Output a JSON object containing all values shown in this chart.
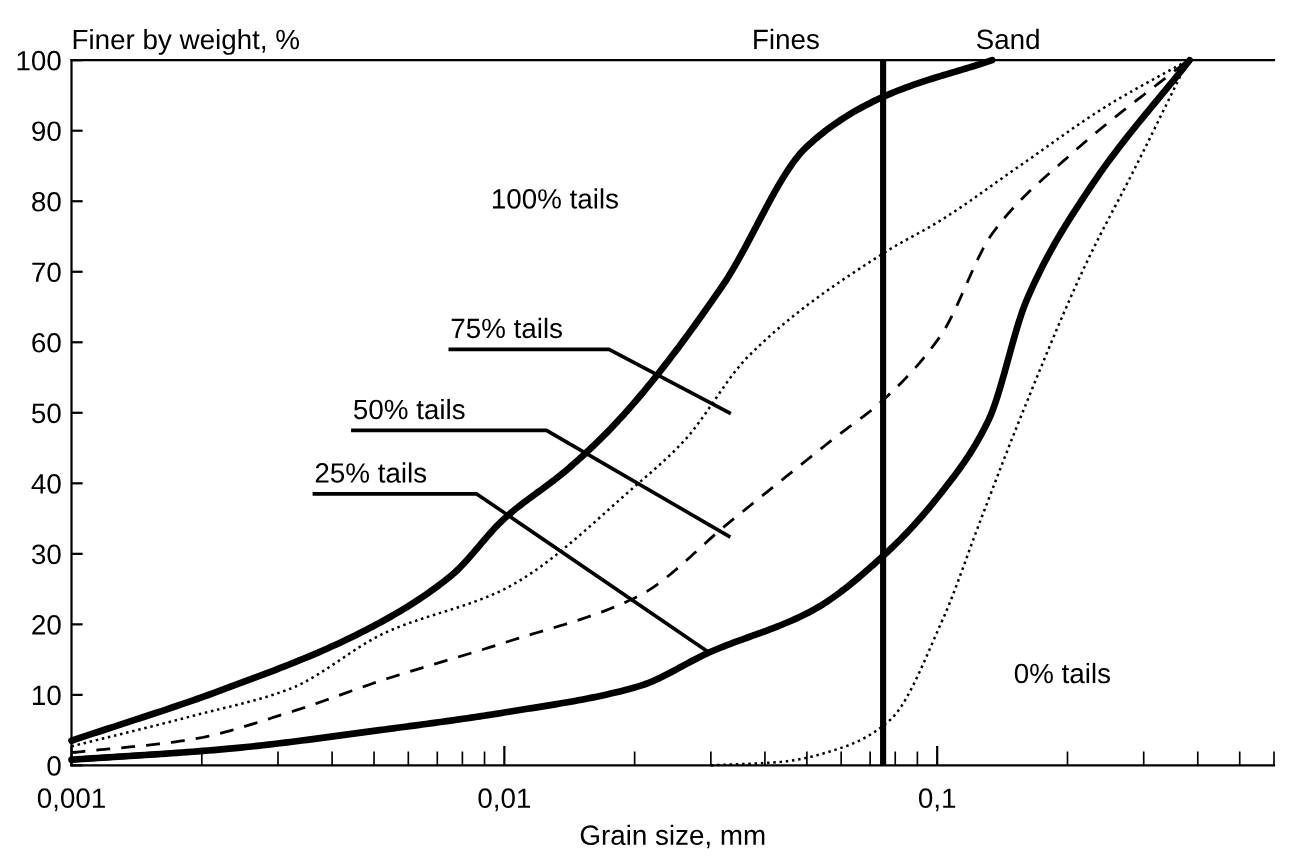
{
  "chart_data": {
    "type": "line",
    "xlabel": "Grain size, mm",
    "ylabel": "Finer by weight, %",
    "log": "x",
    "xlim": [
      0.001,
      0.6
    ],
    "xticks": [
      {
        "value": 0.001,
        "label": "0,001"
      },
      {
        "value": 0.01,
        "label": "0,01"
      },
      {
        "value": 0.1,
        "label": "0,1"
      }
    ],
    "ylim": [
      0,
      100
    ],
    "yticks": [
      0,
      10,
      20,
      30,
      40,
      50,
      60,
      70,
      80,
      90,
      100
    ],
    "grid": false,
    "marker": "none",
    "ref_lines": [
      {
        "axis": "x",
        "value": 0.075,
        "color": "#000000",
        "line_style": "solid"
      }
    ],
    "annotations": [
      "Fines",
      "Sand",
      "100% tails",
      "75% tails",
      {
        "text": "50% tails",
        "x": 0.033,
        "y": 32.5
      },
      {
        "text": "25% tails",
        "x": 0.0297,
        "y": 16
      },
      "0% tails"
    ],
    "series": [
      {
        "color": "#000000",
        "line_style": "solid",
        "x": [
          0.001,
          0.00225,
          0.00465,
          0.0075,
          0.01,
          0.014,
          0.0184,
          0.0319,
          0.0499,
          0.075,
          0.134
        ],
        "values": [
          3.5,
          10.8,
          18.8,
          26.8,
          35,
          42,
          49,
          68,
          87.7,
          94.8,
          100
        ]
      },
      {
        "color": "#000000",
        "line_style": "dotted",
        "x": [
          0.001,
          0.0019,
          0.00318,
          0.0053,
          0.01,
          0.0204,
          0.026,
          0.0366,
          0.075,
          0.102,
          0.155,
          0.245,
          0.38
        ],
        "values": [
          2.7,
          7,
          10.8,
          18.8,
          25,
          40,
          46,
          58,
          72.6,
          77.3,
          85,
          93.4,
          100
        ]
      },
      {
        "color": "#000000",
        "line_style": "dashed",
        "x": [
          0.001,
          0.0019,
          0.00318,
          0.0053,
          0.01,
          0.0204,
          0.033,
          0.0573,
          0.075,
          0.102,
          0.134,
          0.205,
          0.38
        ],
        "values": [
          1.8,
          3.7,
          7.5,
          12.2,
          17.4,
          24,
          34.4,
          46.2,
          51.8,
          61,
          75.4,
          86.8,
          100
        ]
      },
      {
        "color": "#000000",
        "line_style": "solid",
        "x": [
          0.001,
          0.00225,
          0.0053,
          0.01,
          0.0204,
          0.0297,
          0.0516,
          0.075,
          0.102,
          0.1315,
          0.161,
          0.226,
          0.383
        ],
        "values": [
          0.8,
          2.3,
          5.1,
          7.5,
          11.2,
          16,
          22,
          29.7,
          38.6,
          49,
          66,
          82,
          100
        ]
      },
      {
        "color": "#000000",
        "line_style": "dotted",
        "x": [
          0.03,
          0.0435,
          0.0614,
          0.078,
          0.103,
          0.126,
          0.155,
          0.219,
          0.288,
          0.38
        ],
        "values": [
          0,
          0.5,
          2.7,
          6.5,
          20.7,
          34.8,
          49,
          70.7,
          85,
          100
        ]
      }
    ]
  }
}
